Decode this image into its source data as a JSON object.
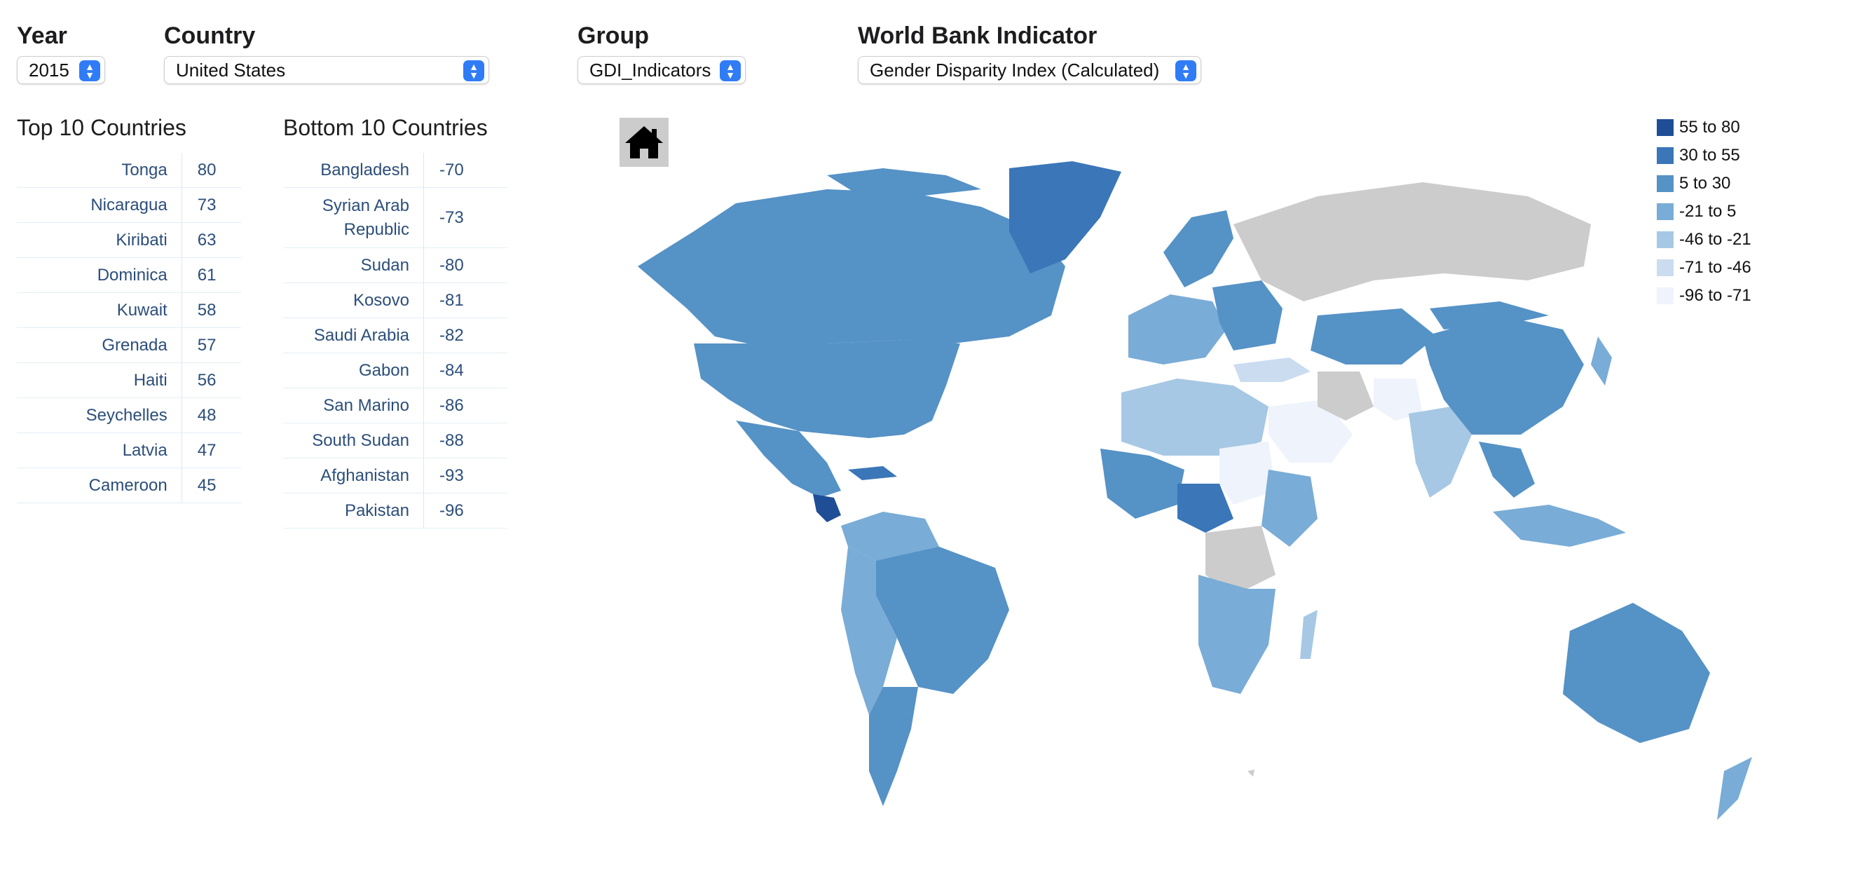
{
  "controls": {
    "year": {
      "label": "Year",
      "value": "2015"
    },
    "country": {
      "label": "Country",
      "value": "United States"
    },
    "group": {
      "label": "Group",
      "value": "GDI_Indicators"
    },
    "indicator": {
      "label": "World Bank Indicator",
      "value": "Gender Disparity Index (Calculated)"
    }
  },
  "top": {
    "title": "Top 10 Countries",
    "rows": [
      {
        "name": "Tonga",
        "value": "80"
      },
      {
        "name": "Nicaragua",
        "value": "73"
      },
      {
        "name": "Kiribati",
        "value": "63"
      },
      {
        "name": "Dominica",
        "value": "61"
      },
      {
        "name": "Kuwait",
        "value": "58"
      },
      {
        "name": "Grenada",
        "value": "57"
      },
      {
        "name": "Haiti",
        "value": "56"
      },
      {
        "name": "Seychelles",
        "value": "48"
      },
      {
        "name": "Latvia",
        "value": "47"
      },
      {
        "name": "Cameroon",
        "value": "45"
      }
    ]
  },
  "bottom": {
    "title": "Bottom 10 Countries",
    "rows": [
      {
        "name": "Bangladesh",
        "value": "-70"
      },
      {
        "name": "Syrian Arab Republic",
        "value": "-73"
      },
      {
        "name": "Sudan",
        "value": "-80"
      },
      {
        "name": "Kosovo",
        "value": "-81"
      },
      {
        "name": "Saudi Arabia",
        "value": "-82"
      },
      {
        "name": "Gabon",
        "value": "-84"
      },
      {
        "name": "San Marino",
        "value": "-86"
      },
      {
        "name": "South Sudan",
        "value": "-88"
      },
      {
        "name": "Afghanistan",
        "value": "-93"
      },
      {
        "name": "Pakistan",
        "value": "-96"
      }
    ]
  },
  "map": {
    "home_icon": "home-icon",
    "no_data_color": "#cccccc",
    "legend": [
      {
        "label": "55 to 80",
        "color": "#1f4e96"
      },
      {
        "label": "30 to 55",
        "color": "#3a76b8"
      },
      {
        "label": "5 to 30",
        "color": "#5592c6"
      },
      {
        "label": "-21 to 5",
        "color": "#79acd6"
      },
      {
        "label": "-46 to -21",
        "color": "#a6c8e4"
      },
      {
        "label": "-71 to -46",
        "color": "#cbdcf0"
      },
      {
        "label": "-96 to -71",
        "color": "#eef3fc"
      }
    ]
  }
}
